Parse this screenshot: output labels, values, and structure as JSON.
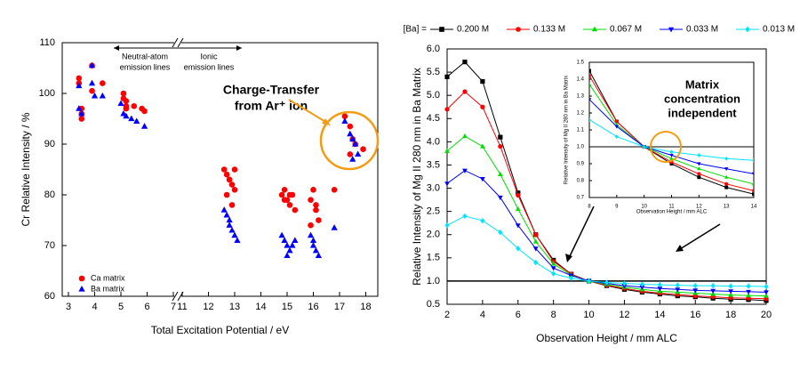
{
  "chart_data": [
    {
      "type": "scatter",
      "ylabel": "Cr Relative Intensity / %",
      "xlabel": "Total Excitation Potential / eV",
      "xlim": [
        3,
        18
      ],
      "xbreak": [
        7,
        11
      ],
      "xticks": [
        3,
        4,
        5,
        6,
        7,
        11,
        12,
        13,
        14,
        15,
        16,
        17,
        18
      ],
      "ylim": [
        60,
        110
      ],
      "yticks": [
        60,
        70,
        80,
        90,
        100,
        110
      ],
      "annotations": [
        "Neutral-atom",
        "emission lines",
        "Ionic",
        "emission lines",
        "Charge-Transfer",
        "from Ar⁺ ion"
      ],
      "series": [
        {
          "name": "Ca matrix",
          "color": "#ff0000",
          "marker": "circle",
          "x": [
            3.4,
            3.4,
            3.5,
            3.5,
            3.5,
            3.9,
            3.9,
            4.3,
            5.1,
            5.1,
            5.2,
            5.2,
            5.2,
            5.5,
            5.8,
            5.9,
            12.6,
            12.7,
            12.8,
            12.9,
            13.0,
            12.7,
            12.9,
            13.0,
            12.8,
            14.8,
            14.9,
            15.0,
            15.1,
            15.2,
            15.3,
            14.9,
            15.1,
            15.9,
            16.0,
            16.1,
            16.2,
            15.9,
            16.1,
            16.8,
            17.2,
            17.4,
            17.5,
            17.6,
            17.4,
            17.9
          ],
          "values": [
            103,
            102,
            97,
            96,
            95,
            105.5,
            100.5,
            102,
            100,
            99,
            98.5,
            97.5,
            97,
            97.5,
            97,
            96.5,
            85,
            84,
            83,
            82,
            81,
            80,
            78,
            85,
            83,
            80,
            81,
            79,
            78,
            80,
            77,
            79,
            80,
            79,
            81,
            78,
            75,
            74,
            77,
            81,
            95.5,
            93.5,
            91,
            90,
            88,
            89
          ]
        },
        {
          "name": "Ba matrix",
          "color": "#0000ff",
          "marker": "triangle",
          "x": [
            3.4,
            3.4,
            3.5,
            3.9,
            3.9,
            4.0,
            4.3,
            5.0,
            5.1,
            5.2,
            5.4,
            5.6,
            5.9,
            12.6,
            12.7,
            12.8,
            12.9,
            13.0,
            12.8,
            13.1,
            14.8,
            14.9,
            15.0,
            15.1,
            15.2,
            15.3,
            15.0,
            15.9,
            16.0,
            16.1,
            16.2,
            16.0,
            16.8,
            17.2,
            17.4,
            17.5,
            17.6,
            17.7,
            17.5
          ],
          "values": [
            101.5,
            97,
            96,
            105.5,
            102,
            99.5,
            99.5,
            98,
            96,
            95.5,
            95,
            94.5,
            93.5,
            77,
            76,
            75,
            73,
            72,
            74,
            71,
            72,
            71,
            70,
            69,
            70,
            71,
            68,
            72,
            70,
            69,
            68,
            71,
            73.5,
            94.5,
            92,
            91,
            90,
            88,
            87
          ]
        }
      ]
    },
    {
      "type": "line",
      "ylabel": "Relative Intensity of Mg II 280 nm in Ba Matrix",
      "xlabel": "Observation Height / mm ALC",
      "legend_title": "[Ba] =",
      "xlim": [
        2,
        20
      ],
      "xticks": [
        2,
        4,
        6,
        8,
        10,
        12,
        14,
        16,
        18,
        20
      ],
      "ylim": [
        0.5,
        6
      ],
      "yticks": [
        0.5,
        {
          "value": 1,
          "label": "1.0"
        },
        1.5,
        {
          "value": 2,
          "label": "2.0"
        },
        2.5,
        {
          "value": 3,
          "label": "3.0"
        },
        3.5,
        {
          "value": 4,
          "label": "4.0"
        },
        4.5,
        {
          "value": 5,
          "label": "5.0"
        },
        5.5,
        {
          "value": 6,
          "label": "6.0"
        }
      ],
      "hline": 1,
      "x": [
        2,
        3,
        4,
        5,
        6,
        7,
        8,
        9,
        10,
        11,
        12,
        13,
        14,
        15,
        16,
        17,
        18,
        19,
        20
      ],
      "series": [
        {
          "name": "0.200 M",
          "color": "#000000",
          "marker": "square",
          "values": [
            5.4,
            5.72,
            5.3,
            4.1,
            2.9,
            2.0,
            1.45,
            1.15,
            1.0,
            0.9,
            0.82,
            0.76,
            0.72,
            0.68,
            0.66,
            0.63,
            0.61,
            0.6,
            0.58
          ]
        },
        {
          "name": "0.133 M",
          "color": "#ff0000",
          "marker": "circle",
          "values": [
            4.7,
            5.08,
            4.75,
            3.9,
            2.85,
            2.0,
            1.42,
            1.15,
            1.0,
            0.91,
            0.84,
            0.78,
            0.74,
            0.71,
            0.68,
            0.66,
            0.64,
            0.63,
            0.62
          ]
        },
        {
          "name": "0.067 M",
          "color": "#00dd00",
          "marker": "triangle",
          "values": [
            3.8,
            4.12,
            3.9,
            3.3,
            2.55,
            1.85,
            1.37,
            1.13,
            1.0,
            0.93,
            0.87,
            0.82,
            0.78,
            0.76,
            0.74,
            0.72,
            0.7,
            0.69,
            0.68
          ]
        },
        {
          "name": "0.033 M",
          "color": "#0000ff",
          "marker": "triangle-down",
          "values": [
            3.1,
            3.38,
            3.2,
            2.8,
            2.2,
            1.7,
            1.28,
            1.12,
            1.0,
            0.95,
            0.9,
            0.87,
            0.84,
            0.82,
            0.8,
            0.79,
            0.78,
            0.77,
            0.76
          ]
        },
        {
          "name": "0.013 M",
          "color": "#00e5ff",
          "marker": "diamond",
          "values": [
            2.2,
            2.4,
            2.3,
            2.05,
            1.7,
            1.4,
            1.16,
            1.06,
            1.0,
            0.97,
            0.95,
            0.93,
            0.92,
            0.91,
            0.9,
            0.9,
            0.89,
            0.89,
            0.88
          ]
        }
      ]
    },
    {
      "type": "inset",
      "ylabel": "Relative Intensity of Mg II 280 nm in Ba Matrix",
      "xlabel": "Observation Height / mm ALC",
      "xlim": [
        8,
        14
      ],
      "xticks": [
        8,
        9,
        10,
        11,
        12,
        13,
        14
      ],
      "ylim": [
        0.7,
        1.5
      ],
      "yticks": [
        0.7,
        0.8,
        0.9,
        {
          "value": 1,
          "label": "1.0"
        },
        1.1,
        1.2,
        1.3,
        1.4,
        1.5
      ],
      "hline": 1,
      "annotations": [
        "Matrix",
        "concentration",
        "independent"
      ]
    }
  ]
}
